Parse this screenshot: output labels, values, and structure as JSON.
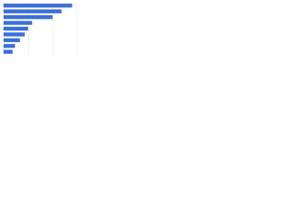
{
  "chart_data": {
    "type": "hbar",
    "categories": [
      null,
      null,
      null,
      null,
      null,
      null,
      null,
      null,
      null
    ],
    "values": [
      84,
      71,
      60,
      35,
      30,
      26,
      20,
      14,
      11
    ],
    "color": "#3b6fd6",
    "xlim": [
      0,
      100
    ],
    "xticks": [
      0,
      30,
      60,
      90
    ],
    "grid": true
  }
}
